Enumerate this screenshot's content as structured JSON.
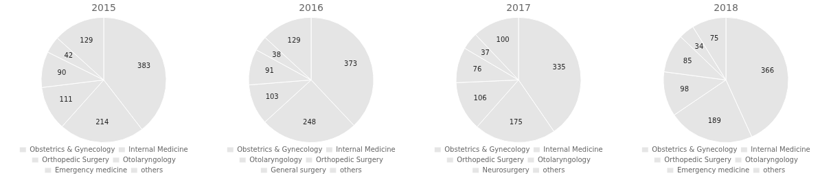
{
  "chart_data": [
    {
      "type": "pie",
      "title": "2015",
      "categories": [
        "Obstetrics & Gynecology",
        "Internal Medicine",
        "Orthopedic Surgery",
        "Otolaryngology",
        "Emergency medicine",
        "others"
      ],
      "values": [
        383,
        214,
        111,
        90,
        42,
        129
      ],
      "data_labels": true,
      "legend": "bottom"
    },
    {
      "type": "pie",
      "title": "2016",
      "categories": [
        "Obstetrics & Gynecology",
        "Internal Medicine",
        "Otolaryngology",
        "Orthopedic Surgery",
        "General surgery",
        "others"
      ],
      "values": [
        373,
        248,
        103,
        91,
        38,
        129
      ],
      "data_labels": true,
      "legend": "bottom"
    },
    {
      "type": "pie",
      "title": "2017",
      "categories": [
        "Obstetrics & Gynecology",
        "Internal Medicine",
        "Orthopedic Surgery",
        "Otolaryngology",
        "Neurosurgery",
        "others"
      ],
      "values": [
        335,
        175,
        106,
        76,
        37,
        100
      ],
      "data_labels": true,
      "legend": "bottom"
    },
    {
      "type": "pie",
      "title": "2018",
      "categories": [
        "Obstetrics & Gynecology",
        "Internal Medicine",
        "Orthopedic Surgery",
        "Otolaryngology",
        "Emergency medicine",
        "others"
      ],
      "values": [
        366,
        189,
        98,
        85,
        34,
        75
      ],
      "data_labels": true,
      "legend": "bottom"
    }
  ]
}
